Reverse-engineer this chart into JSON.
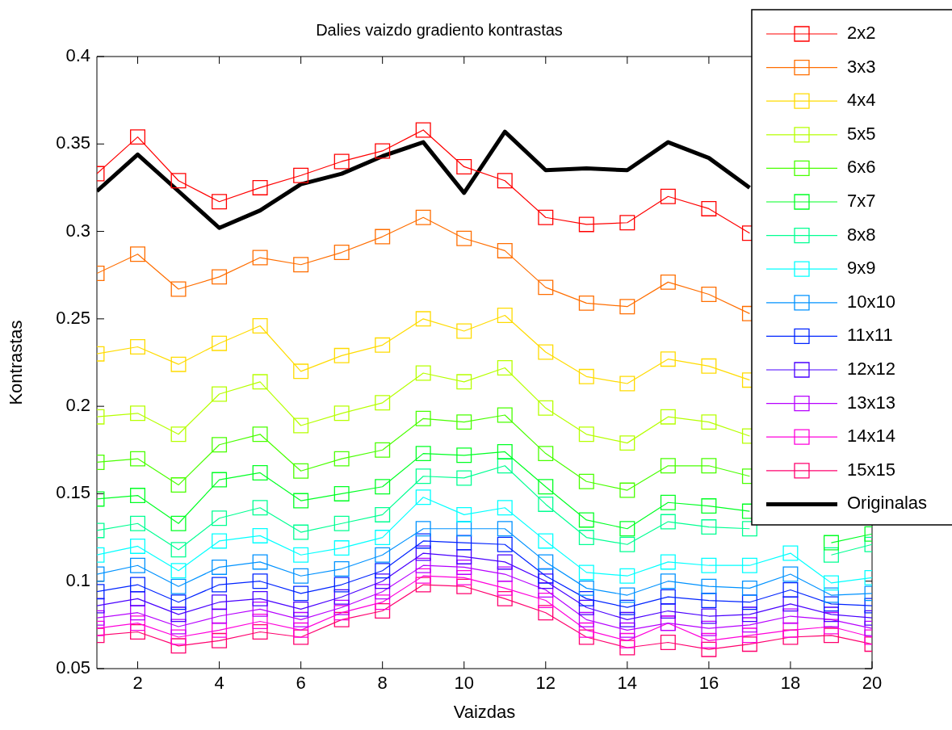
{
  "chart_data": {
    "type": "line",
    "title": "Dalies vaizdo gradiento kontrastas",
    "xlabel": "Vaizdas",
    "ylabel": "Kontrastas",
    "x": [
      1,
      2,
      3,
      4,
      5,
      6,
      7,
      8,
      9,
      10,
      11,
      12,
      13,
      14,
      15,
      16,
      17,
      18,
      19,
      20
    ],
    "xlim": [
      1,
      20
    ],
    "xticks": [
      2,
      4,
      6,
      8,
      10,
      12,
      14,
      16,
      18,
      20
    ],
    "ylim": [
      0.05,
      0.4
    ],
    "yticks": [
      0.05,
      0.1,
      0.15,
      0.2,
      0.25,
      0.3,
      0.35,
      0.4
    ],
    "grid": false,
    "legend": "top right",
    "marker": "square",
    "line_style": "solid",
    "series": [
      {
        "name": "2x2",
        "color": "#ff0000",
        "values": [
          0.333,
          0.354,
          0.329,
          0.317,
          0.325,
          0.332,
          0.34,
          0.346,
          0.358,
          0.337,
          0.329,
          0.308,
          0.304,
          0.305,
          0.32,
          0.313,
          0.299,
          null,
          null,
          null
        ]
      },
      {
        "name": "3x3",
        "color": "#ff6e00",
        "values": [
          0.276,
          0.287,
          0.267,
          0.274,
          0.285,
          0.281,
          0.288,
          0.297,
          0.308,
          0.296,
          0.289,
          0.268,
          0.259,
          0.257,
          0.271,
          0.264,
          0.253,
          null,
          null,
          null
        ]
      },
      {
        "name": "4x4",
        "color": "#ffdb00",
        "values": [
          0.23,
          0.234,
          0.224,
          0.236,
          0.246,
          0.22,
          0.229,
          0.235,
          0.25,
          0.243,
          0.252,
          0.231,
          0.217,
          0.213,
          0.227,
          0.223,
          0.215,
          null,
          null,
          null
        ]
      },
      {
        "name": "5x5",
        "color": "#b6ff00",
        "values": [
          0.194,
          0.196,
          0.184,
          0.207,
          0.214,
          0.189,
          0.196,
          0.202,
          0.219,
          0.214,
          0.222,
          0.199,
          0.184,
          0.179,
          0.194,
          0.191,
          0.183,
          null,
          null,
          null
        ]
      },
      {
        "name": "6x6",
        "color": "#49ff00",
        "values": [
          0.168,
          0.17,
          0.155,
          0.178,
          0.184,
          0.163,
          0.17,
          0.175,
          0.193,
          0.191,
          0.195,
          0.173,
          0.157,
          0.152,
          0.166,
          0.166,
          0.16,
          null,
          null,
          null
        ]
      },
      {
        "name": "7x7",
        "color": "#00ff24",
        "values": [
          0.147,
          0.149,
          0.133,
          0.158,
          0.162,
          0.146,
          0.15,
          0.154,
          0.173,
          0.172,
          0.174,
          0.154,
          0.135,
          0.13,
          0.145,
          0.143,
          0.14,
          null,
          0.122,
          0.127
        ]
      },
      {
        "name": "8x8",
        "color": "#00ff92",
        "values": [
          0.129,
          0.133,
          0.118,
          0.136,
          0.142,
          0.128,
          0.133,
          0.138,
          0.16,
          0.159,
          0.166,
          0.144,
          0.125,
          0.121,
          0.134,
          0.131,
          0.13,
          null,
          0.115,
          0.121
        ]
      },
      {
        "name": "9x9",
        "color": "#00ffff",
        "values": [
          0.115,
          0.12,
          0.106,
          0.123,
          0.126,
          0.115,
          0.119,
          0.125,
          0.148,
          0.138,
          0.142,
          0.123,
          0.105,
          0.103,
          0.111,
          0.109,
          0.109,
          0.116,
          0.099,
          0.102
        ]
      },
      {
        "name": "10x10",
        "color": "#0092ff",
        "values": [
          0.104,
          0.109,
          0.097,
          0.108,
          0.111,
          0.103,
          0.107,
          0.115,
          0.13,
          0.13,
          0.13,
          0.111,
          0.096,
          0.092,
          0.1,
          0.097,
          0.096,
          0.104,
          0.092,
          0.093
        ]
      },
      {
        "name": "11x11",
        "color": "#0024ff",
        "values": [
          0.094,
          0.098,
          0.088,
          0.098,
          0.1,
          0.093,
          0.098,
          0.106,
          0.123,
          0.122,
          0.121,
          0.103,
          0.09,
          0.085,
          0.091,
          0.089,
          0.088,
          0.095,
          0.087,
          0.086
        ]
      },
      {
        "name": "12x12",
        "color": "#4900ff",
        "values": [
          0.086,
          0.09,
          0.081,
          0.088,
          0.09,
          0.084,
          0.091,
          0.1,
          0.116,
          0.114,
          0.111,
          0.1,
          0.085,
          0.078,
          0.083,
          0.08,
          0.081,
          0.087,
          0.081,
          0.079
        ]
      },
      {
        "name": "13x13",
        "color": "#b600ff",
        "values": [
          0.079,
          0.082,
          0.074,
          0.08,
          0.084,
          0.078,
          0.085,
          0.094,
          0.109,
          0.108,
          0.104,
          0.095,
          0.078,
          0.072,
          0.076,
          0.073,
          0.075,
          0.08,
          0.078,
          0.073
        ]
      },
      {
        "name": "14x14",
        "color": "#ff00db",
        "values": [
          0.073,
          0.076,
          0.068,
          0.072,
          0.077,
          0.072,
          0.082,
          0.088,
          0.103,
          0.102,
          0.096,
          0.089,
          0.072,
          0.066,
          0.076,
          0.066,
          0.069,
          0.072,
          0.074,
          0.068
        ]
      },
      {
        "name": "15x15",
        "color": "#ff006e",
        "values": [
          0.069,
          0.071,
          0.063,
          0.066,
          0.071,
          0.068,
          0.078,
          0.083,
          0.098,
          0.097,
          0.09,
          0.082,
          0.068,
          0.062,
          0.065,
          0.061,
          0.064,
          0.068,
          0.069,
          0.064
        ]
      },
      {
        "name": "Originalas",
        "color": "#000000",
        "marker": "none",
        "values": [
          0.323,
          0.344,
          0.323,
          0.302,
          0.312,
          0.327,
          0.333,
          0.343,
          0.351,
          0.322,
          0.357,
          0.335,
          0.336,
          0.335,
          0.351,
          0.342,
          0.325,
          null,
          null,
          null
        ]
      }
    ]
  }
}
